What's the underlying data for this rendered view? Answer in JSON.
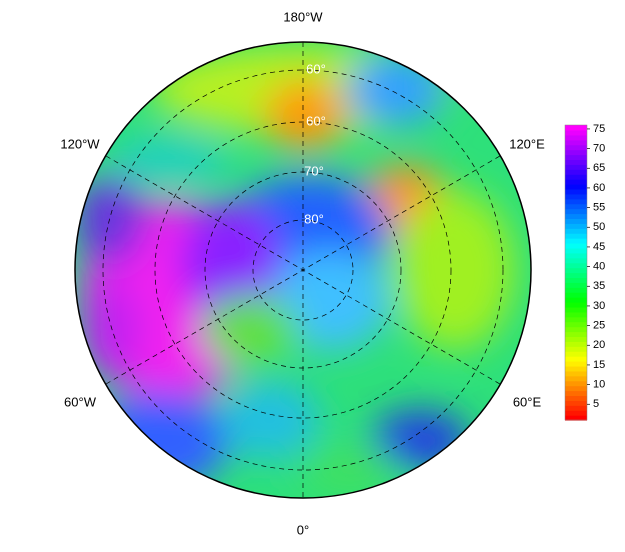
{
  "map": {
    "longitude_labels": {
      "top": "180°W",
      "bottom": "0°",
      "upper_left": "120°W",
      "upper_right": "120°E",
      "lower_left": "60°W",
      "lower_right": "60°E"
    },
    "latitude_labels": [
      "60°",
      "60°",
      "70°",
      "80°"
    ],
    "colorbar": {
      "lim": [
        1,
        76
      ],
      "ticks": [
        5,
        10,
        15,
        20,
        25,
        30,
        35,
        40,
        45,
        50,
        55,
        60,
        65,
        70,
        75
      ]
    }
  }
}
